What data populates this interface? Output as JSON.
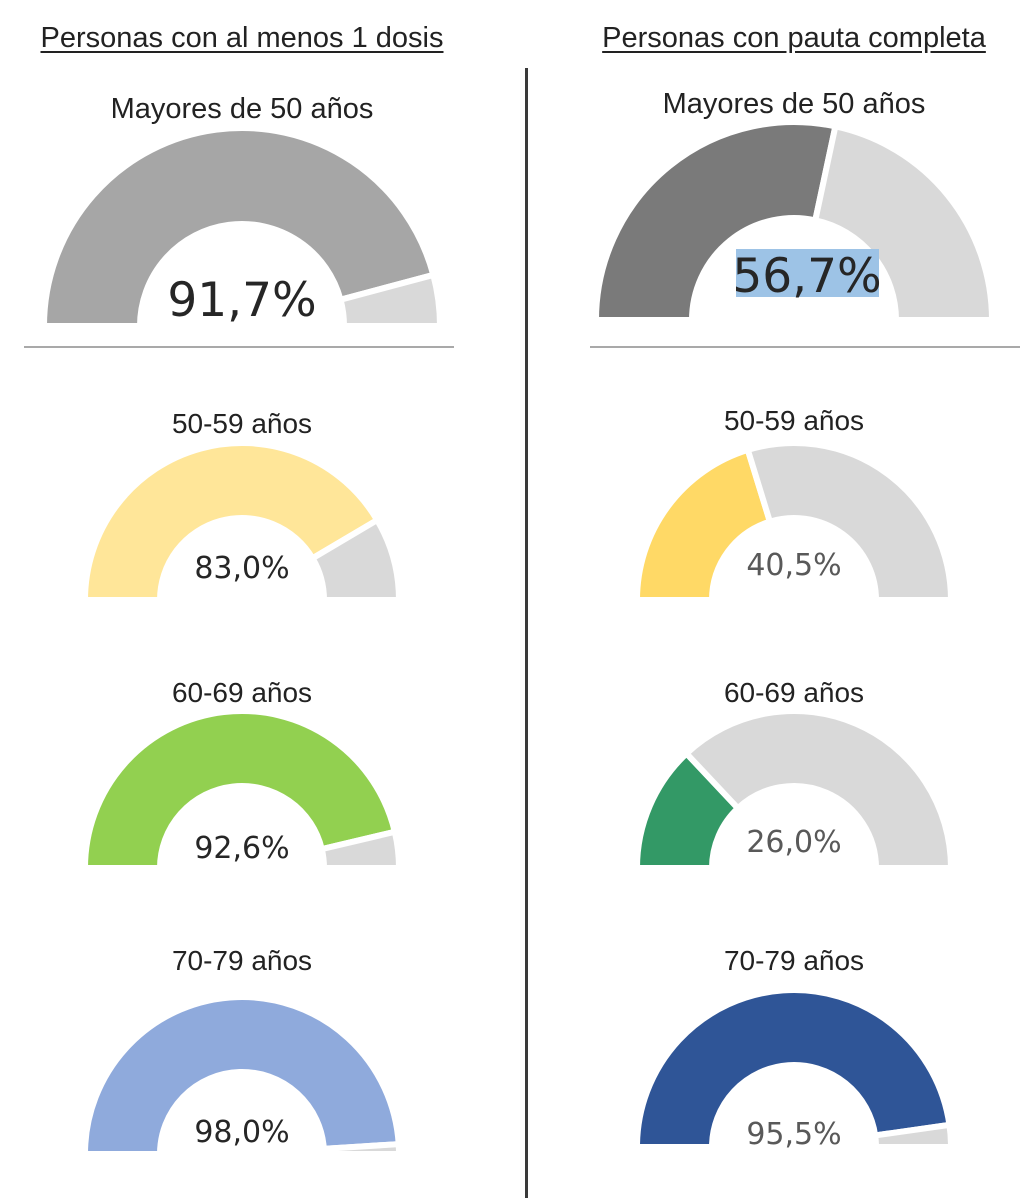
{
  "headings": {
    "left": "Personas con al menos 1 dosis",
    "right": "Personas con pauta completa"
  },
  "colors": {
    "remainder": "#d9d9d9",
    "highlight": "#9dc3e6"
  },
  "chart_data": [
    {
      "type": "gauge",
      "column": "left",
      "title": "Mayores de 50 años",
      "value": 91.7,
      "label": "91,7%",
      "color": "#a6a6a6"
    },
    {
      "type": "gauge",
      "column": "left",
      "title": "50-59 años",
      "value": 83.0,
      "label": "83,0%",
      "color": "#ffe699"
    },
    {
      "type": "gauge",
      "column": "left",
      "title": "60-69 años",
      "value": 92.6,
      "label": "92,6%",
      "color": "#92d050"
    },
    {
      "type": "gauge",
      "column": "left",
      "title": "70-79 años",
      "value": 98.0,
      "label": "98,0%",
      "color": "#8faadc"
    },
    {
      "type": "gauge",
      "column": "right",
      "title": "Mayores de 50 años",
      "value": 56.7,
      "label": "56,7%",
      "color": "#7a7a7a",
      "highlighted": true
    },
    {
      "type": "gauge",
      "column": "right",
      "title": "50-59 años",
      "value": 40.5,
      "label": "40,5%",
      "color": "#ffd966"
    },
    {
      "type": "gauge",
      "column": "right",
      "title": "60-69 años",
      "value": 26.0,
      "label": "26,0%",
      "color": "#339966"
    },
    {
      "type": "gauge",
      "column": "right",
      "title": "70-79 años",
      "value": 95.5,
      "label": "95,5%",
      "color": "#2f5597"
    }
  ]
}
